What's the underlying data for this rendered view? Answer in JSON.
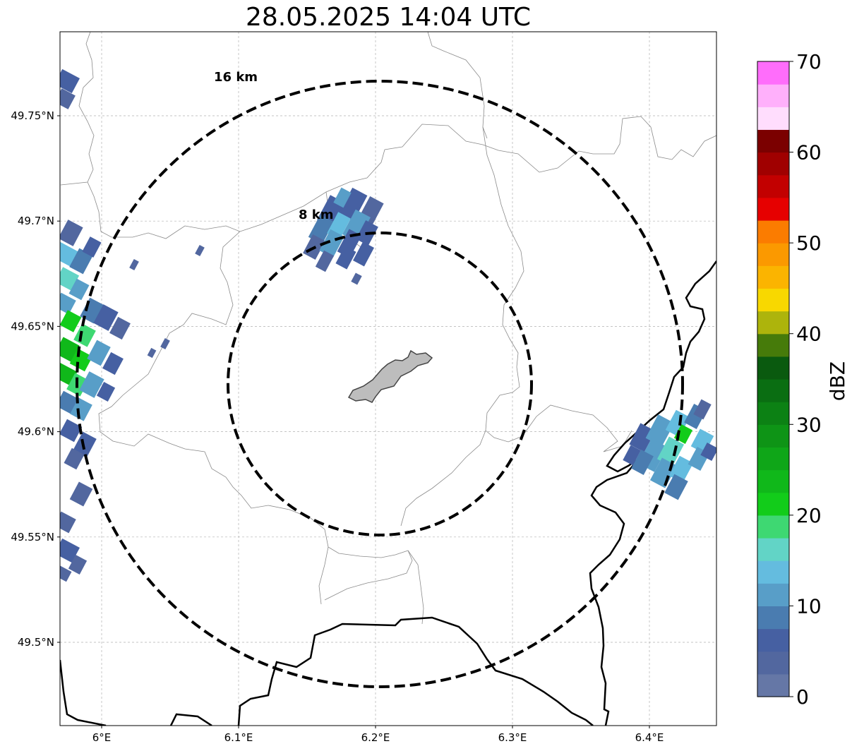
{
  "title": "28.05.2025 14:04 UTC",
  "map": {
    "x_ticks": [
      {
        "value": 6.0,
        "label": "6°E"
      },
      {
        "value": 6.1,
        "label": "6.1°E"
      },
      {
        "value": 6.2,
        "label": "6.2°E"
      },
      {
        "value": 6.3,
        "label": "6.3°E"
      },
      {
        "value": 6.4,
        "label": "6.4°E"
      }
    ],
    "y_ticks": [
      {
        "value": 49.75,
        "label": "49.75°N"
      },
      {
        "value": 49.7,
        "label": "49.7°N"
      },
      {
        "value": 49.65,
        "label": "49.65°N"
      },
      {
        "value": 49.6,
        "label": "49.6°N"
      },
      {
        "value": 49.55,
        "label": "49.55°N"
      },
      {
        "value": 49.5,
        "label": "49.5°N"
      }
    ],
    "grid": true,
    "range_rings": [
      {
        "label": "8 km",
        "radius_km": 8
      },
      {
        "label": "16 km",
        "radius_km": 16
      }
    ],
    "radar_center": {
      "lon": 6.203,
      "lat": 49.623
    }
  },
  "colorbar": {
    "label": "dBZ",
    "min": 0,
    "max": 70,
    "step": 2.5,
    "tick_labels": [
      "0",
      "10",
      "20",
      "30",
      "40",
      "50",
      "60",
      "70"
    ],
    "colors": [
      "#6577a6",
      "#52679f",
      "#4660a2",
      "#4a7cb0",
      "#589ec8",
      "#64bcdf",
      "#62d4c6",
      "#3ed872",
      "#12cc1a",
      "#10b81a",
      "#0fa618",
      "#0e9416",
      "#0c8114",
      "#0a6e12",
      "#0a5a0f",
      "#467b0a",
      "#adb40c",
      "#f8d800",
      "#fbb400",
      "#fb9900",
      "#fb7c00",
      "#e60000",
      "#c20000",
      "#a00000",
      "#7b0000",
      "#ffddfd",
      "#ffb0fb",
      "#ff6dfb",
      "#ee33ee"
    ]
  }
}
